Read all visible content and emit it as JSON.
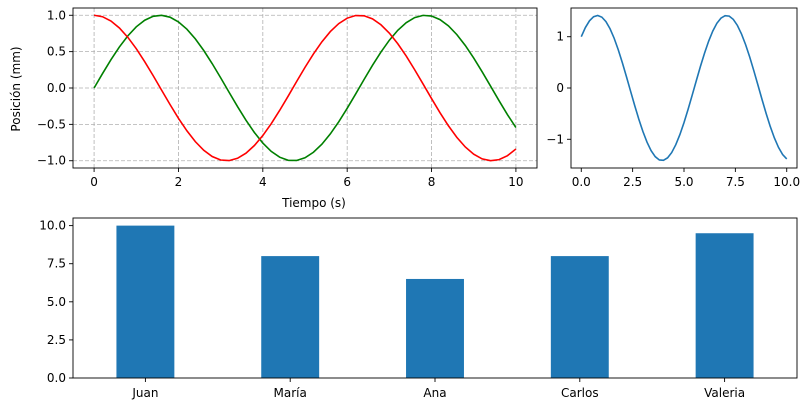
{
  "chart_data": [
    {
      "type": "line",
      "xlabel": "Tiempo (s)",
      "ylabel": "Posición (mm)",
      "xlim": [
        -0.5,
        10.5
      ],
      "ylim": [
        -1.1,
        1.1
      ],
      "xticks": [
        0,
        2,
        4,
        6,
        8,
        10
      ],
      "yticks": [
        -1.0,
        -0.5,
        0.0,
        0.5,
        1.0
      ],
      "grid": true,
      "series": [
        {
          "function": "sin",
          "x_range": [
            0,
            10
          ],
          "samples": 51,
          "color": "#008000"
        },
        {
          "function": "cos",
          "x_range": [
            0,
            10
          ],
          "samples": 51,
          "color": "#ff0000"
        }
      ]
    },
    {
      "type": "line",
      "xlabel": "",
      "ylabel": "",
      "xlim": [
        -0.5,
        10.5
      ],
      "ylim": [
        -1.56,
        1.56
      ],
      "xticks": [
        0.0,
        2.5,
        5.0,
        7.5,
        10.0
      ],
      "yticks": [
        -1,
        0,
        1
      ],
      "grid": false,
      "series": [
        {
          "function": "sin+cos",
          "x_range": [
            0,
            10
          ],
          "samples": 51,
          "color": "#1f77b4"
        }
      ]
    },
    {
      "type": "bar",
      "categories": [
        "Juan",
        "María",
        "Ana",
        "Carlos",
        "Valeria"
      ],
      "values": [
        10,
        8,
        6.5,
        8,
        9.5
      ],
      "ylim": [
        0,
        10.5
      ],
      "yticks": [
        0.0,
        2.5,
        5.0,
        7.5,
        10.0
      ],
      "bar_width": 0.4,
      "color": "#1f77b4",
      "grid": false
    }
  ]
}
